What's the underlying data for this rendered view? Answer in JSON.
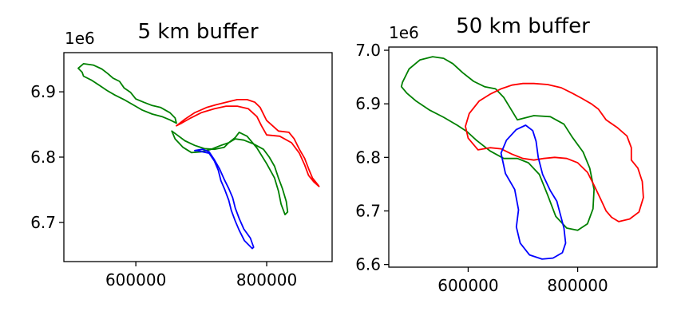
{
  "chart_data": [
    {
      "type": "line",
      "title": "5 km buffer",
      "xlabel": "",
      "ylabel": "",
      "xlim": [
        490000,
        900000
      ],
      "ylim": [
        6640000,
        6960000
      ],
      "x_ticks": [
        600000,
        800000
      ],
      "x_tick_labels": [
        "600000",
        "800000"
      ],
      "y_ticks": [
        6700000,
        6800000,
        6900000
      ],
      "y_tick_labels": [
        "6.7",
        "6.8",
        "6.9"
      ],
      "y_offset_label": "1e6",
      "grid": false,
      "series": [
        {
          "color": "#008000",
          "x": [
            518000,
            512000,
            520000,
            535000,
            548000,
            557000,
            565000,
            575000,
            582000,
            592000,
            600000,
            612000,
            625000,
            638000,
            652000,
            660000,
            662000,
            652000,
            640000,
            625000,
            610000,
            596000,
            582000,
            568000,
            556000,
            544000,
            532000,
            520000,
            518000
          ],
          "y": [
            6930000,
            6936000,
            6943000,
            6941000,
            6935000,
            6928000,
            6921000,
            6916000,
            6906000,
            6899000,
            6889000,
            6884000,
            6879000,
            6876000,
            6868000,
            6860000,
            6852000,
            6857000,
            6862000,
            6866000,
            6872000,
            6880000,
            6888000,
            6895000,
            6902000,
            6910000,
            6918000,
            6924000,
            6930000
          ]
        },
        {
          "color": "#008000",
          "x": [
            655000,
            660000,
            672000,
            685000,
            700000,
            715000,
            730000,
            742000,
            752000,
            758000,
            770000,
            785000,
            800000,
            812000,
            818000,
            822000,
            828000,
            832000,
            830000,
            824000,
            818000,
            812000,
            804000,
            795000,
            780000,
            765000,
            752000,
            742000,
            735000,
            720000,
            705000,
            690000,
            675000,
            663000,
            655000
          ],
          "y": [
            6840000,
            6828000,
            6815000,
            6807000,
            6808000,
            6812000,
            6818000,
            6822000,
            6830000,
            6838000,
            6832000,
            6814000,
            6790000,
            6768000,
            6748000,
            6728000,
            6712000,
            6716000,
            6732000,
            6752000,
            6768000,
            6786000,
            6800000,
            6812000,
            6820000,
            6826000,
            6828000,
            6822000,
            6815000,
            6812000,
            6813000,
            6818000,
            6825000,
            6834000,
            6840000
          ]
        },
        {
          "color": "#ff0000",
          "x": [
            662000,
            675000,
            690000,
            708000,
            722000,
            738000,
            755000,
            770000,
            782000,
            790000,
            800000,
            818000,
            834000,
            842000,
            850000,
            858000,
            865000,
            870000,
            878000,
            880000,
            872000,
            864000,
            858000,
            850000,
            838000,
            820000,
            800000,
            792000,
            785000,
            772000,
            755000,
            738000,
            720000,
            700000,
            684000,
            670000,
            662000
          ],
          "y": [
            6848000,
            6858000,
            6868000,
            6876000,
            6880000,
            6884000,
            6888000,
            6888000,
            6884000,
            6876000,
            6856000,
            6840000,
            6838000,
            6828000,
            6812000,
            6798000,
            6780000,
            6768000,
            6758000,
            6755000,
            6762000,
            6772000,
            6788000,
            6806000,
            6822000,
            6832000,
            6834000,
            6848000,
            6862000,
            6874000,
            6878000,
            6878000,
            6874000,
            6868000,
            6860000,
            6852000,
            6848000
          ]
        },
        {
          "color": "#0000ff",
          "x": [
            690000,
            702000,
            712000,
            720000,
            728000,
            735000,
            742000,
            748000,
            752000,
            758000,
            765000,
            775000,
            780000,
            778000,
            766000,
            758000,
            752000,
            746000,
            742000,
            736000,
            730000,
            726000,
            720000,
            712000,
            702000,
            694000,
            690000
          ],
          "y": [
            6810000,
            6812000,
            6808000,
            6796000,
            6782000,
            6766000,
            6752000,
            6738000,
            6722000,
            6706000,
            6690000,
            6676000,
            6662000,
            6660000,
            6672000,
            6688000,
            6702000,
            6718000,
            6734000,
            6750000,
            6764000,
            6780000,
            6794000,
            6806000,
            6808000,
            6810000,
            6810000
          ]
        }
      ]
    },
    {
      "type": "line",
      "title": "50 km buffer",
      "xlabel": "",
      "ylabel": "",
      "xlim": [
        455000,
        945000
      ],
      "ylim": [
        6595000,
        7006000
      ],
      "x_ticks": [
        600000,
        800000
      ],
      "x_tick_labels": [
        "600000",
        "800000"
      ],
      "y_ticks": [
        6600000,
        6700000,
        6800000,
        6900000,
        7000000
      ],
      "y_tick_labels": [
        "6.6",
        "6.7",
        "6.8",
        "6.9",
        "7.0"
      ],
      "y_offset_label": "1e6",
      "grid": false,
      "series": [
        {
          "color": "#008000",
          "x": [
            480000,
            492000,
            512000,
            535000,
            555000,
            572000,
            590000,
            610000,
            630000,
            650000,
            665000,
            690000,
            720000,
            750000,
            775000,
            790000,
            810000,
            822000,
            830000,
            828000,
            818000,
            800000,
            780000,
            760000,
            745000,
            730000,
            710000,
            690000,
            665000,
            640000,
            615000,
            598000,
            580000,
            555000,
            530000,
            505000,
            488000,
            478000,
            480000
          ],
          "y": [
            6940000,
            6965000,
            6982000,
            6988000,
            6985000,
            6975000,
            6958000,
            6942000,
            6932000,
            6928000,
            6912000,
            6870000,
            6878000,
            6876000,
            6862000,
            6838000,
            6810000,
            6780000,
            6740000,
            6704000,
            6676000,
            6664000,
            6668000,
            6690000,
            6730000,
            6768000,
            6790000,
            6798000,
            6798000,
            6812000,
            6832000,
            6848000,
            6860000,
            6875000,
            6888000,
            6905000,
            6920000,
            6932000,
            6940000
          ]
        },
        {
          "color": "#ff0000",
          "x": [
            595000,
            602000,
            620000,
            640000,
            660000,
            680000,
            700000,
            720000,
            745000,
            770000,
            790000,
            808000,
            825000,
            838000,
            852000,
            872000,
            890000,
            898000,
            898000,
            910000,
            918000,
            920000,
            912000,
            895000,
            875000,
            862000,
            852000,
            842000,
            830000,
            818000,
            800000,
            780000,
            758000,
            738000,
            720000,
            700000,
            680000,
            660000,
            640000,
            618000,
            600000,
            595000
          ],
          "y": [
            6858000,
            6882000,
            6905000,
            6918000,
            6928000,
            6935000,
            6938000,
            6938000,
            6936000,
            6930000,
            6920000,
            6910000,
            6900000,
            6890000,
            6870000,
            6856000,
            6840000,
            6818000,
            6795000,
            6780000,
            6755000,
            6725000,
            6698000,
            6685000,
            6680000,
            6688000,
            6700000,
            6722000,
            6748000,
            6772000,
            6790000,
            6798000,
            6800000,
            6798000,
            6795000,
            6798000,
            6806000,
            6816000,
            6818000,
            6814000,
            6836000,
            6858000
          ]
        },
        {
          "color": "#0000ff",
          "x": [
            660000,
            670000,
            688000,
            705000,
            718000,
            724000,
            728000,
            736000,
            750000,
            762000,
            768000,
            775000,
            778000,
            772000,
            755000,
            735000,
            712000,
            695000,
            688000,
            692000,
            685000,
            668000,
            660000
          ],
          "y": [
            6808000,
            6832000,
            6852000,
            6860000,
            6850000,
            6830000,
            6800000,
            6768000,
            6738000,
            6718000,
            6695000,
            6668000,
            6640000,
            6622000,
            6612000,
            6610000,
            6618000,
            6640000,
            6670000,
            6702000,
            6740000,
            6770000,
            6808000
          ]
        }
      ]
    }
  ]
}
